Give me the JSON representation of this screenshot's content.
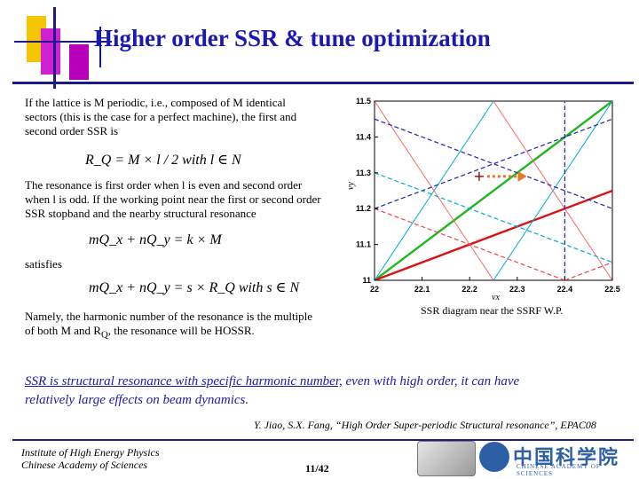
{
  "slide": {
    "title": "Higher order SSR & tune optimization",
    "page_number": "11/42"
  },
  "text": {
    "para1_line1": "If the lattice is M periodic, i.e., composed of M identical",
    "para1_line2": "sectors (this is the case for a perfect machine), the first and",
    "para1_line3": "second order SSR is",
    "formula1": "R_Q = M × l / 2 with l ∈ N",
    "para2_line1": "The resonance is first order when l is even and second order",
    "para2_line2": "when l is odd. If the working point near the first or second order",
    "para2_line3": "SSR stopband and the nearby structural resonance",
    "formula2": "mQ_x + nQ_y = k × M",
    "satisfies": "satisfies",
    "formula3": "mQ_x + nQ_y = s × R_Q with s ∈ N",
    "para3_line1": "Namely, the harmonic number of the resonance is the multiple",
    "para3_line2_a": "of both M and R",
    "para3_line2_sub": "Q",
    "para3_line2_b": ", the resonance will be HOSSR.",
    "highlight_underlined": "SSR is structural resonance with specific harmonic number,",
    "highlight_rest1": " even with high order, it can have",
    "highlight_rest2": "relatively large effects on beam dynamics.",
    "reference": "Y. Jiao, S.X. Fang, “High Order Super-periodic Structural resonance”, EPAC08",
    "institute_line1": "Institute of High Energy Physics",
    "institute_line2": "Chinese Academy of Sciences",
    "logo_cas_cn": "中国科学院",
    "logo_cas_en": "CHINESE ACADEMY OF SCIENCES"
  },
  "chart_data": {
    "type": "line",
    "caption": "SSR diagram near the SSRF  W.P.",
    "xlabel": "νx",
    "ylabel": "νy",
    "xlim": [
      22,
      22.5
    ],
    "ylim": [
      11,
      11.5
    ],
    "x_ticks": [
      "22",
      "22.1",
      "22.2",
      "22.3",
      "22.4",
      "22.5"
    ],
    "y_ticks": [
      "11",
      "11.1",
      "11.2",
      "11.3",
      "11.4",
      "11.5"
    ],
    "grid": false,
    "working_point": {
      "x": 22.22,
      "y": 11.29
    },
    "arrow_to": {
      "x": 22.32,
      "y": 11.29
    },
    "series": [
      {
        "color": "#1db81d",
        "width": 2.4,
        "dash": "",
        "points": [
          [
            22.0,
            11.0
          ],
          [
            22.5,
            11.5
          ]
        ]
      },
      {
        "color": "#dd1111",
        "width": 2.4,
        "dash": "",
        "points": [
          [
            22.0,
            11.0
          ],
          [
            22.5,
            11.25
          ]
        ]
      },
      {
        "color": "#00aadd",
        "width": 1,
        "dash": "",
        "points": [
          [
            22.0,
            11.0
          ],
          [
            22.25,
            11.5
          ]
        ]
      },
      {
        "color": "#00aadd",
        "width": 1,
        "dash": "",
        "points": [
          [
            22.25,
            11.0
          ],
          [
            22.5,
            11.5
          ]
        ]
      },
      {
        "color": "#ff6666",
        "width": 1,
        "dash": "",
        "points": [
          [
            22.25,
            11.5
          ],
          [
            22.5,
            11.0
          ]
        ]
      },
      {
        "color": "#ff6666",
        "width": 1,
        "dash": "",
        "points": [
          [
            22.0,
            11.5
          ],
          [
            22.25,
            11.0
          ]
        ]
      },
      {
        "color": "#2222aa",
        "width": 1.2,
        "dash": "5,3",
        "points": [
          [
            22.0,
            11.2
          ],
          [
            22.5,
            11.45
          ]
        ]
      },
      {
        "color": "#2222aa",
        "width": 1.2,
        "dash": "5,3",
        "points": [
          [
            22.0,
            11.45
          ],
          [
            22.5,
            11.2
          ]
        ]
      },
      {
        "color": "#2222aa",
        "width": 1.2,
        "dash": "5,3",
        "points": [
          [
            22.4,
            11.0
          ],
          [
            22.4,
            11.5
          ]
        ]
      },
      {
        "color": "#ee4444",
        "width": 1.2,
        "dash": "5,3",
        "points": [
          [
            22.0,
            11.2
          ],
          [
            22.4,
            11.0
          ]
        ]
      },
      {
        "color": "#ee4444",
        "width": 1.2,
        "dash": "5,3",
        "points": [
          [
            22.4,
            11.0
          ],
          [
            22.5,
            11.05
          ]
        ]
      },
      {
        "color": "#00aadd",
        "width": 1.2,
        "dash": "5,3",
        "points": [
          [
            22.0,
            11.3
          ],
          [
            22.5,
            11.05
          ]
        ]
      }
    ]
  }
}
